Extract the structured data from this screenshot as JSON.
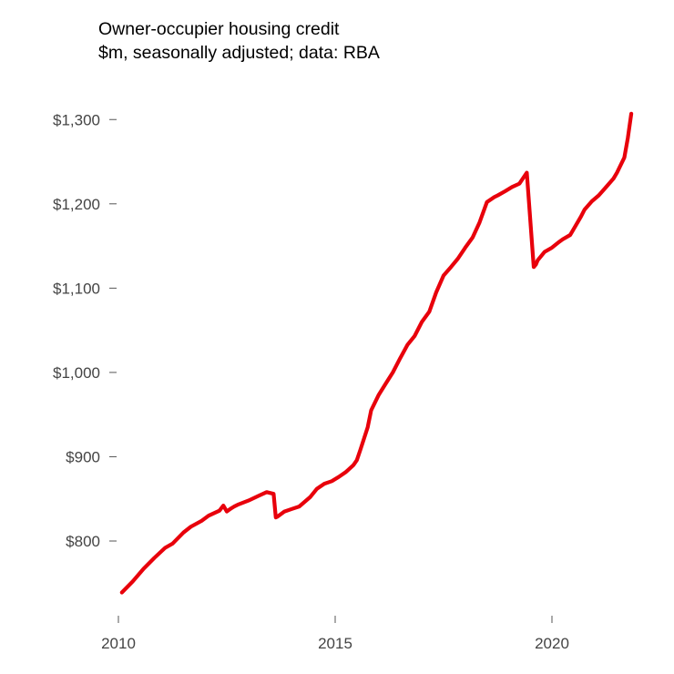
{
  "chart_data": {
    "type": "line",
    "title": "Owner-occupier housing credit",
    "subtitle": "$m, seasonally adjusted; data: RBA",
    "xlabel": "",
    "ylabel": "",
    "xlim": [
      2009.5,
      2022.3
    ],
    "ylim": [
      735,
      1315
    ],
    "grid": false,
    "line_color": "#e8000b",
    "x_ticks": [
      {
        "value": 2010,
        "label": "2010"
      },
      {
        "value": 2015,
        "label": "2015"
      },
      {
        "value": 2020,
        "label": "2020"
      }
    ],
    "y_ticks": [
      {
        "value": 800,
        "label": "$800"
      },
      {
        "value": 900,
        "label": "$900"
      },
      {
        "value": 1000,
        "label": "$1,000"
      },
      {
        "value": 1100,
        "label": "$1,100"
      },
      {
        "value": 1200,
        "label": "$1,200"
      },
      {
        "value": 1300,
        "label": "$1,300"
      }
    ],
    "series": [
      {
        "x": [
          2010.08,
          2010.33,
          2010.58,
          2010.83,
          2011.08,
          2011.25,
          2011.5,
          2011.67,
          2011.92,
          2012.08,
          2012.33,
          2012.42,
          2012.5,
          2012.58,
          2012.67,
          2012.75,
          2013.0,
          2013.25,
          2013.42,
          2013.58,
          2013.63,
          2013.67,
          2013.83,
          2014.0,
          2014.17,
          2014.42,
          2014.58,
          2014.75,
          2014.92,
          2015.08,
          2015.25,
          2015.42,
          2015.5,
          2015.58,
          2015.75,
          2015.83,
          2016.0,
          2016.17,
          2016.33,
          2016.5,
          2016.67,
          2016.83,
          2017.0,
          2017.17,
          2017.33,
          2017.5,
          2017.67,
          2017.83,
          2018.0,
          2018.17,
          2018.33,
          2018.5,
          2018.67,
          2018.75,
          2018.92,
          2019.08,
          2019.25,
          2019.42,
          2019.58,
          2019.63,
          2019.67,
          2019.83,
          2020.0,
          2020.17,
          2020.25,
          2020.42,
          2020.5,
          2020.67,
          2020.75,
          2020.92,
          2021.08,
          2021.25,
          2021.42,
          2021.5,
          2021.67,
          2021.75,
          2021.83
        ],
        "values": [
          739,
          752,
          767,
          780,
          792,
          797,
          810,
          817,
          824,
          830,
          836,
          842,
          835,
          838,
          841,
          843,
          848,
          854,
          858,
          856,
          828,
          829,
          835,
          838,
          841,
          852,
          862,
          868,
          871,
          876,
          882,
          890,
          896,
          908,
          935,
          955,
          973,
          987,
          1000,
          1017,
          1033,
          1043,
          1060,
          1072,
          1095,
          1115,
          1125,
          1135,
          1148,
          1160,
          1178,
          1202,
          1208,
          1210,
          1215,
          1220,
          1224,
          1237,
          1125,
          1128,
          1133,
          1143,
          1148,
          1155,
          1158,
          1163,
          1170,
          1185,
          1193,
          1203,
          1210,
          1220,
          1230,
          1237,
          1255,
          1278,
          1307
        ]
      }
    ]
  }
}
